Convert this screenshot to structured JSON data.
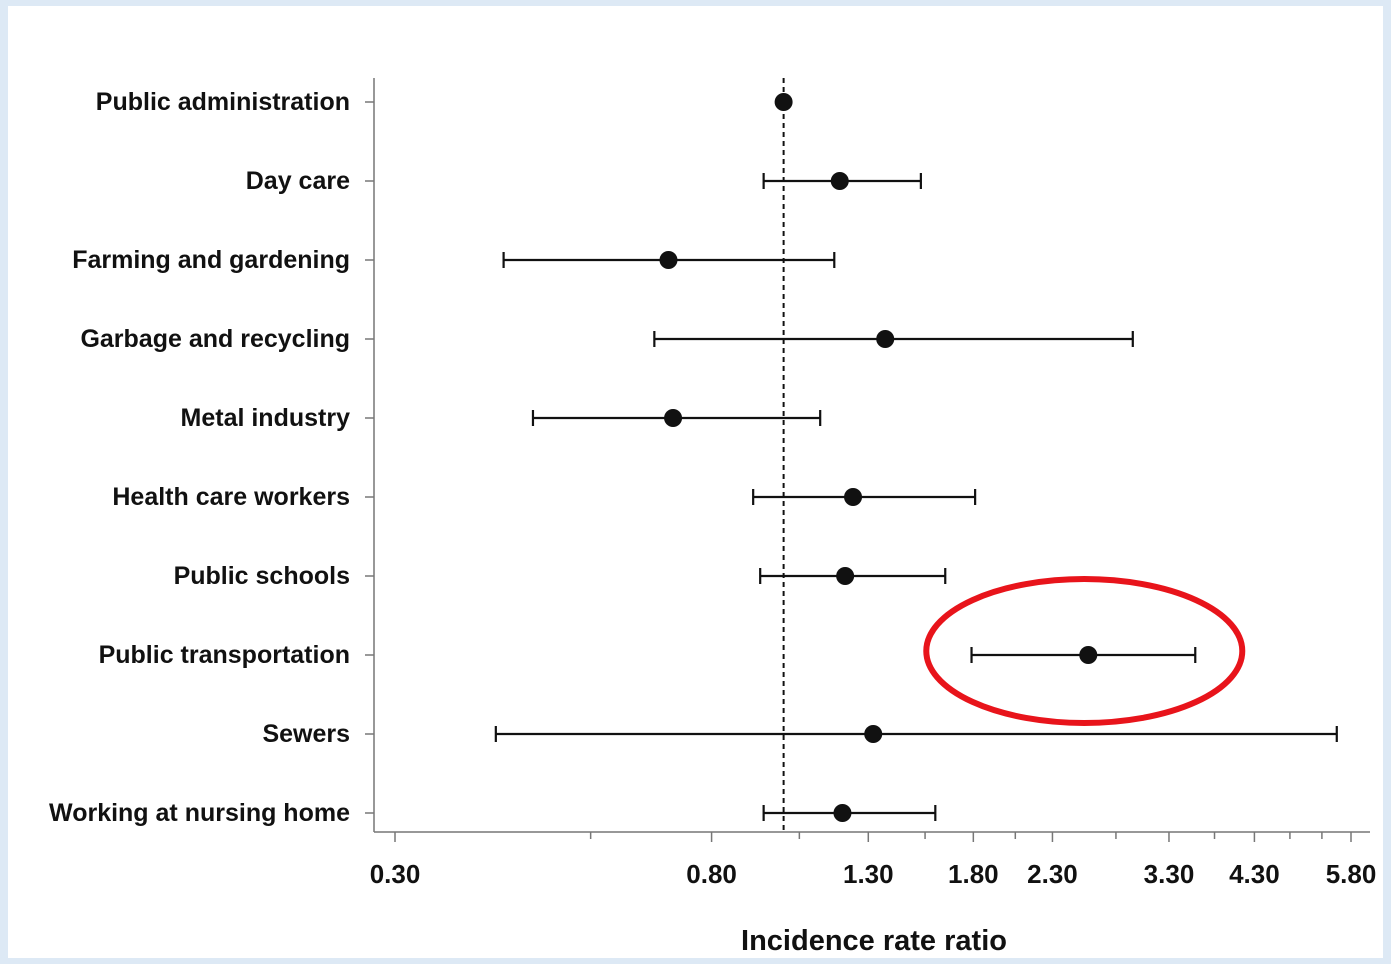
{
  "chart_data": {
    "type": "forest",
    "categories": [
      "Public administration",
      "Day care",
      "Farming and gardening",
      "Garbage and recycling",
      "Metal industry",
      "Health care workers",
      "Public schools",
      "Public transportation",
      "Sewers",
      "Working at nursing home"
    ],
    "estimate": [
      1.0,
      1.19,
      0.7,
      1.37,
      0.71,
      1.24,
      1.21,
      2.57,
      1.32,
      1.2
    ],
    "ci_low": [
      null,
      0.94,
      0.42,
      0.67,
      0.46,
      0.91,
      0.93,
      1.79,
      0.41,
      0.94
    ],
    "ci_high": [
      null,
      1.53,
      1.17,
      2.95,
      1.12,
      1.81,
      1.65,
      3.58,
      5.55,
      1.6
    ],
    "reference_value": 1.0,
    "x_scale": "log",
    "x_ticks": [
      0.3,
      0.8,
      1.3,
      1.8,
      2.3,
      3.3,
      4.3,
      5.8
    ],
    "x_tick_labels": [
      "0.30",
      "0.80",
      "1.30",
      "1.80",
      "2.30",
      "3.30",
      "4.30",
      "5.80"
    ],
    "x_minor_ticks": [
      0.55,
      1.05,
      1.55,
      2.05,
      2.8,
      3.8,
      4.8,
      5.3
    ],
    "xlabel": "Incidence rate ratio",
    "highlighted_category": "Public transportation",
    "colors": {
      "markers": "#111111",
      "highlight_ellipse": "#e8141b"
    }
  }
}
